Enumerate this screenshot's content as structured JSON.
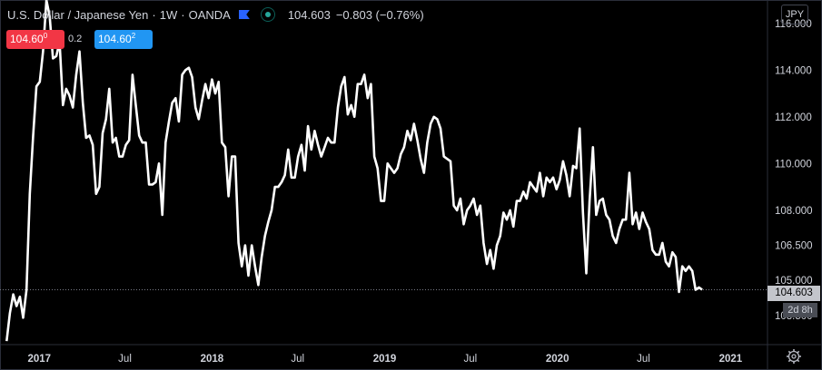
{
  "header": {
    "symbol": "U.S. Dollar / Japanese Yen",
    "sep1": "·",
    "interval": "1W",
    "sep2": "·",
    "exchange": "OANDA",
    "last": "104.603",
    "change": "−0.803 (−0.76%)"
  },
  "trade": {
    "sell_main": "104.60",
    "sell_small": "0",
    "spread": "0.2",
    "buy_main": "104.60",
    "buy_small": "2"
  },
  "currency": "JPY",
  "last_label": "104.603",
  "countdown": "2d 8h",
  "icons": [
    "flag-icon",
    "market-status-icon",
    "gear-icon"
  ],
  "colors": {
    "background": "#000000",
    "line": "#ffffff",
    "sell": "#f23645",
    "buy": "#2196f3",
    "text": "#d1d4dc"
  },
  "chart_data": {
    "type": "line",
    "title": "U.S. Dollar / Japanese Yen · 1W · OANDA",
    "xlabel": "",
    "ylabel": "",
    "x_ticks": [
      "2017",
      "Jul",
      "2018",
      "Jul",
      "2019",
      "Jul",
      "2020",
      "Jul",
      "2021"
    ],
    "y_ticks": [
      "103.500",
      "105.000",
      "106.500",
      "108.000",
      "110.000",
      "112.000",
      "114.000",
      "116.000"
    ],
    "ylim": [
      102.25,
      117.0
    ],
    "xlim": [
      "2016-10-10",
      "2021-03-20"
    ],
    "grid": false,
    "series": [
      {
        "name": "USDJPY",
        "x": [
          "2016-10-24",
          "2016-10-31",
          "2016-11-07",
          "2016-11-14",
          "2016-11-21",
          "2016-11-28",
          "2016-12-05",
          "2016-12-12",
          "2016-12-19",
          "2016-12-26",
          "2017-01-02",
          "2017-01-09",
          "2017-01-16",
          "2017-01-23",
          "2017-01-30",
          "2017-02-06",
          "2017-02-13",
          "2017-02-20",
          "2017-02-27",
          "2017-03-06",
          "2017-03-13",
          "2017-03-20",
          "2017-03-27",
          "2017-04-03",
          "2017-04-10",
          "2017-04-17",
          "2017-04-24",
          "2017-05-01",
          "2017-05-08",
          "2017-05-15",
          "2017-05-22",
          "2017-05-29",
          "2017-06-05",
          "2017-06-12",
          "2017-06-19",
          "2017-06-26",
          "2017-07-03",
          "2017-07-10",
          "2017-07-17",
          "2017-07-24",
          "2017-07-31",
          "2017-08-07",
          "2017-08-14",
          "2017-08-21",
          "2017-08-28",
          "2017-09-04",
          "2017-09-11",
          "2017-09-18",
          "2017-09-25",
          "2017-10-02",
          "2017-10-09",
          "2017-10-16",
          "2017-10-23",
          "2017-10-30",
          "2017-11-06",
          "2017-11-13",
          "2017-11-20",
          "2017-11-27",
          "2017-12-04",
          "2017-12-11",
          "2017-12-18",
          "2017-12-25",
          "2018-01-01",
          "2018-01-08",
          "2018-01-15",
          "2018-01-22",
          "2018-01-29",
          "2018-02-05",
          "2018-02-12",
          "2018-02-19",
          "2018-02-26",
          "2018-03-05",
          "2018-03-12",
          "2018-03-19",
          "2018-03-26",
          "2018-04-02",
          "2018-04-09",
          "2018-04-16",
          "2018-04-23",
          "2018-04-30",
          "2018-05-07",
          "2018-05-14",
          "2018-05-21",
          "2018-05-28",
          "2018-06-04",
          "2018-06-11",
          "2018-06-18",
          "2018-06-25",
          "2018-07-02",
          "2018-07-09",
          "2018-07-16",
          "2018-07-23",
          "2018-07-30",
          "2018-08-06",
          "2018-08-13",
          "2018-08-20",
          "2018-08-27",
          "2018-09-03",
          "2018-09-10",
          "2018-09-17",
          "2018-09-24",
          "2018-10-01",
          "2018-10-08",
          "2018-10-15",
          "2018-10-22",
          "2018-10-29",
          "2018-11-05",
          "2018-11-12",
          "2018-11-19",
          "2018-11-26",
          "2018-12-03",
          "2018-12-10",
          "2018-12-17",
          "2018-12-24",
          "2018-12-31",
          "2019-01-07",
          "2019-01-14",
          "2019-01-21",
          "2019-01-28",
          "2019-02-04",
          "2019-02-11",
          "2019-02-18",
          "2019-02-25",
          "2019-03-04",
          "2019-03-11",
          "2019-03-18",
          "2019-03-25",
          "2019-04-01",
          "2019-04-08",
          "2019-04-15",
          "2019-04-22",
          "2019-04-29",
          "2019-05-06",
          "2019-05-13",
          "2019-05-20",
          "2019-05-27",
          "2019-06-03",
          "2019-06-10",
          "2019-06-17",
          "2019-06-24",
          "2019-07-01",
          "2019-07-08",
          "2019-07-15",
          "2019-07-22",
          "2019-07-29",
          "2019-08-05",
          "2019-08-12",
          "2019-08-19",
          "2019-08-26",
          "2019-09-02",
          "2019-09-09",
          "2019-09-16",
          "2019-09-23",
          "2019-09-30",
          "2019-10-07",
          "2019-10-14",
          "2019-10-21",
          "2019-10-28",
          "2019-11-04",
          "2019-11-11",
          "2019-11-18",
          "2019-11-25",
          "2019-12-02",
          "2019-12-09",
          "2019-12-16",
          "2019-12-23",
          "2019-12-30",
          "2020-01-06",
          "2020-01-13",
          "2020-01-20",
          "2020-01-27",
          "2020-02-03",
          "2020-02-10",
          "2020-02-17",
          "2020-02-24",
          "2020-03-02",
          "2020-03-09",
          "2020-03-16",
          "2020-03-23",
          "2020-03-30",
          "2020-04-06",
          "2020-04-13",
          "2020-04-20",
          "2020-04-27",
          "2020-05-04",
          "2020-05-11",
          "2020-05-18",
          "2020-05-25",
          "2020-06-01",
          "2020-06-08",
          "2020-06-15",
          "2020-06-22",
          "2020-06-29",
          "2020-07-06",
          "2020-07-13",
          "2020-07-20",
          "2020-07-27",
          "2020-08-03",
          "2020-08-10",
          "2020-08-17",
          "2020-08-24",
          "2020-08-31",
          "2020-09-07",
          "2020-09-14",
          "2020-09-21",
          "2020-09-28",
          "2020-10-05",
          "2020-10-12",
          "2020-10-19",
          "2020-10-26",
          "2020-11-02"
        ],
        "values": [
          102.4,
          103.6,
          104.4,
          103.9,
          104.3,
          103.4,
          104.6,
          108.7,
          111.2,
          113.3,
          113.5,
          114.8,
          117.0,
          116.3,
          114.5,
          114.6,
          115.2,
          112.5,
          113.2,
          112.9,
          112.4,
          113.8,
          114.8,
          112.6,
          111.1,
          111.2,
          110.8,
          108.7,
          109.0,
          111.3,
          111.9,
          113.2,
          110.9,
          111.1,
          110.3,
          110.3,
          110.8,
          111.0,
          113.8,
          112.5,
          111.2,
          110.9,
          110.9,
          109.1,
          109.1,
          109.2,
          110.0,
          107.8,
          110.9,
          111.8,
          112.6,
          112.8,
          111.8,
          113.8,
          114.0,
          114.1,
          113.7,
          112.4,
          111.9,
          112.7,
          113.4,
          112.8,
          113.6,
          113.0,
          113.5,
          110.9,
          110.7,
          108.6,
          110.3,
          110.3,
          106.6,
          105.6,
          106.5,
          105.2,
          106.5,
          105.6,
          104.8,
          106.0,
          106.9,
          107.5,
          108.0,
          109.0,
          109.0,
          109.2,
          109.5,
          110.6,
          109.4,
          109.4,
          110.3,
          110.8,
          109.7,
          111.6,
          110.6,
          111.4,
          110.8,
          110.3,
          110.7,
          111.1,
          110.9,
          110.9,
          112.4,
          113.3,
          113.7,
          112.1,
          112.5,
          112.0,
          113.4,
          113.4,
          113.8,
          112.8,
          113.4,
          110.3,
          109.8,
          108.4,
          108.4,
          110.0,
          109.8,
          109.6,
          109.8,
          110.4,
          110.7,
          111.4,
          111.0,
          111.7,
          111.0,
          110.2,
          109.6,
          110.9,
          111.7,
          112.0,
          111.9,
          111.5,
          110.3,
          110.2,
          110.1,
          108.2,
          108.0,
          108.5,
          107.4,
          108.0,
          108.2,
          108.5,
          107.8,
          108.2,
          106.6,
          105.7,
          106.3,
          105.5,
          106.5,
          106.9,
          107.9,
          107.6,
          108.0,
          107.3,
          108.4,
          108.4,
          108.8,
          108.5,
          109.2,
          109.0,
          108.8,
          109.6,
          108.6,
          109.4,
          109.2,
          109.4,
          108.9,
          109.3,
          110.1,
          109.5,
          108.6,
          109.9,
          109.8,
          111.5,
          107.9,
          105.3,
          108.4,
          110.7,
          107.8,
          108.4,
          108.5,
          107.8,
          107.6,
          106.9,
          106.6,
          107.2,
          107.6,
          107.6,
          109.6,
          107.4,
          107.9,
          107.2,
          107.9,
          107.5,
          107.2,
          106.3,
          106.1,
          106.1,
          106.6,
          105.8,
          105.6,
          106.2,
          106.0,
          104.5,
          105.6,
          105.4,
          105.6,
          105.4,
          104.6,
          104.7,
          104.6
        ]
      }
    ]
  }
}
